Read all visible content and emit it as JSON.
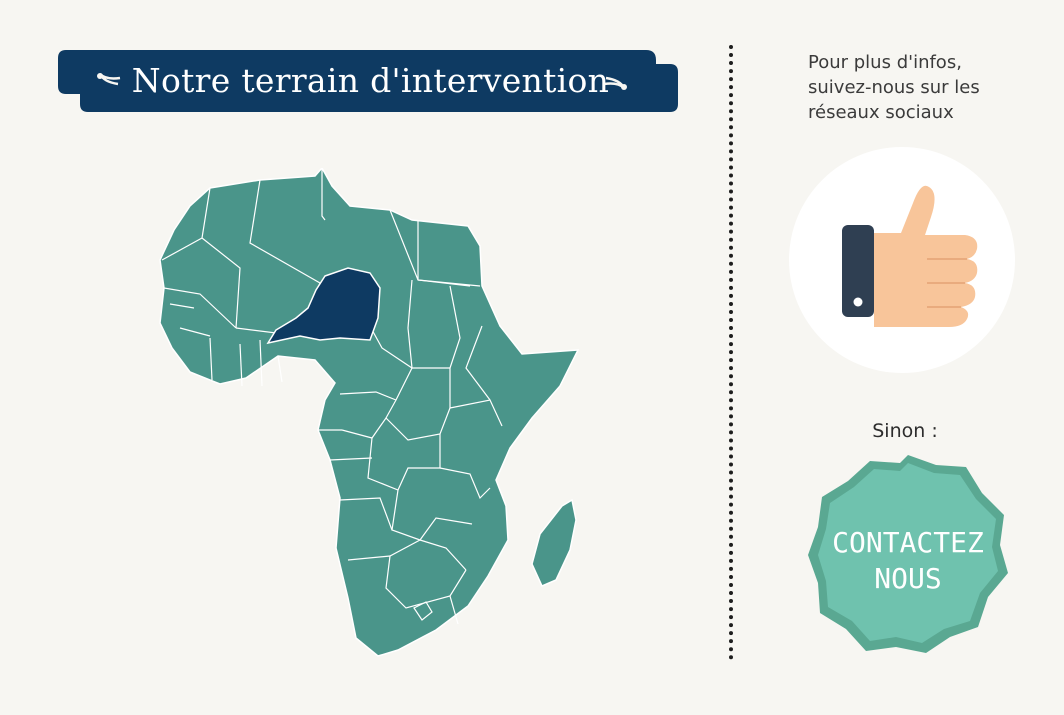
{
  "banner": {
    "title": "Notre terrain d'intervention"
  },
  "map": {
    "highlighted_country": "Niger"
  },
  "sidebar": {
    "info_line1": "Pour plus d'infos,",
    "info_line2": "suivez-nous sur les",
    "info_line3": "réseaux sociaux",
    "sinon_label": "Sinon :",
    "contact_line1": "CONTACTEZ",
    "contact_line2": "NOUS"
  },
  "colors": {
    "background": "#f7f6f2",
    "navy": "#0e3a62",
    "map_teal": "#4a958a",
    "contact_teal": "#6fc2ae",
    "contact_shadow": "#5aa892",
    "thumb_skin": "#f8c59a",
    "cuff": "#2f3f52"
  },
  "icons": {
    "social": "thumbs-up-icon"
  }
}
